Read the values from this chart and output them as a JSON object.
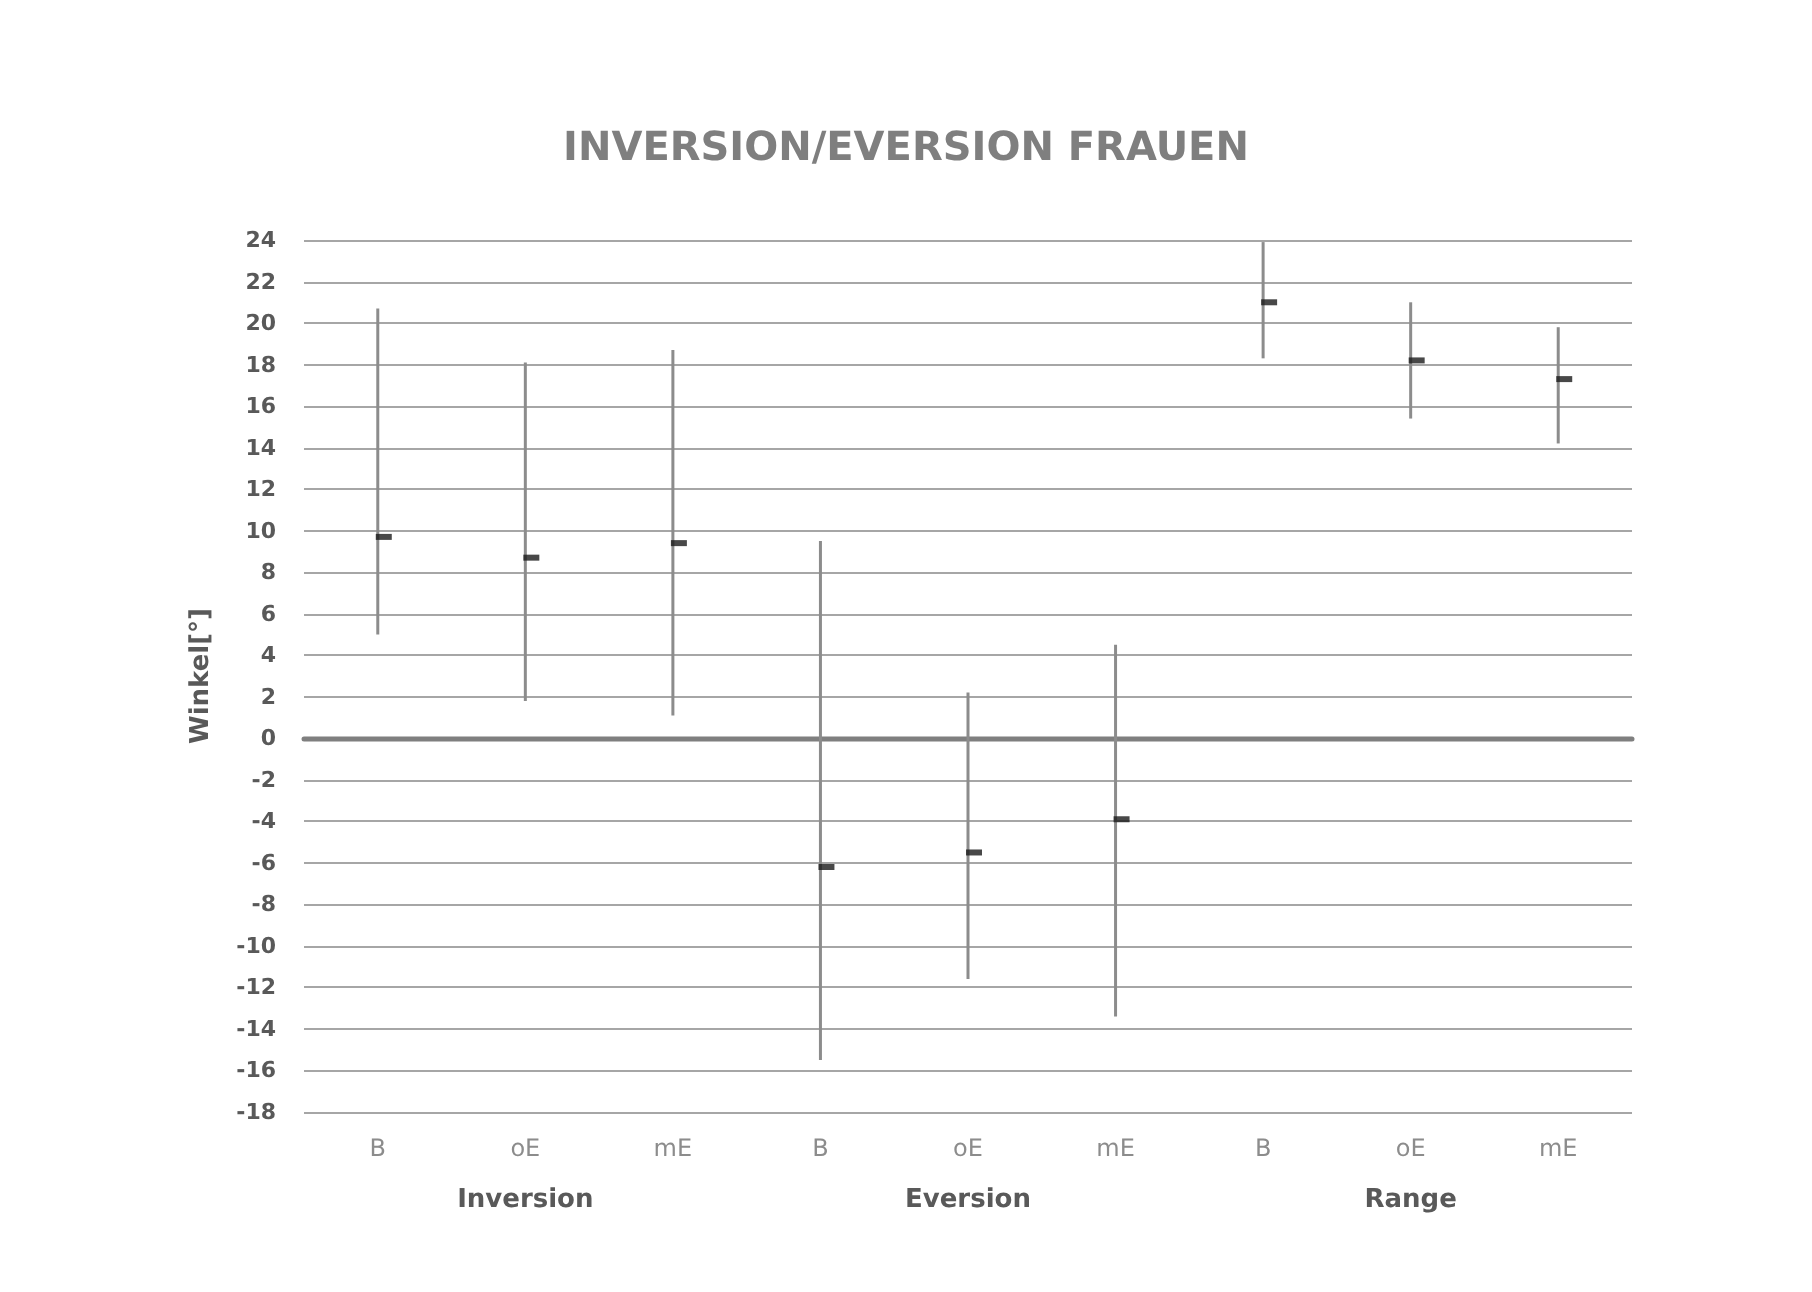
{
  "chart_data": {
    "type": "scatter",
    "title": "INVERSION/EVERSION FRAUEN",
    "ylabel": "Winkel[°]",
    "categories": [
      "B",
      "oE",
      "mE",
      "B",
      "oE",
      "mE",
      "B",
      "oE",
      "mE"
    ],
    "series": [
      {
        "color": "#1a1a1a",
        "values": [
          9.7,
          8.7,
          9.4,
          -6.2,
          -5.5,
          -3.9,
          21,
          18.2,
          17.3
        ],
        "errors": [
          [
            5,
            20.7
          ],
          [
            1.8,
            18.1
          ],
          [
            1.1,
            18.7
          ],
          [
            -15.5,
            9.5
          ],
          [
            -11.6,
            2.2
          ],
          [
            -13.4,
            4.5
          ],
          [
            18.3,
            23.9
          ],
          [
            15.4,
            21
          ],
          [
            14.2,
            19.8
          ]
        ]
      }
    ],
    "annotations": [
      "Inversion",
      "Eversion",
      "Range"
    ],
    "ylim": [
      -18,
      24
    ],
    "yticks": [
      -18,
      -16,
      -14,
      -12,
      -10,
      -8,
      -6,
      -4,
      -2,
      0,
      2,
      4,
      6,
      8,
      10,
      12,
      14,
      16,
      18,
      20,
      22,
      24
    ],
    "grid": "y"
  }
}
